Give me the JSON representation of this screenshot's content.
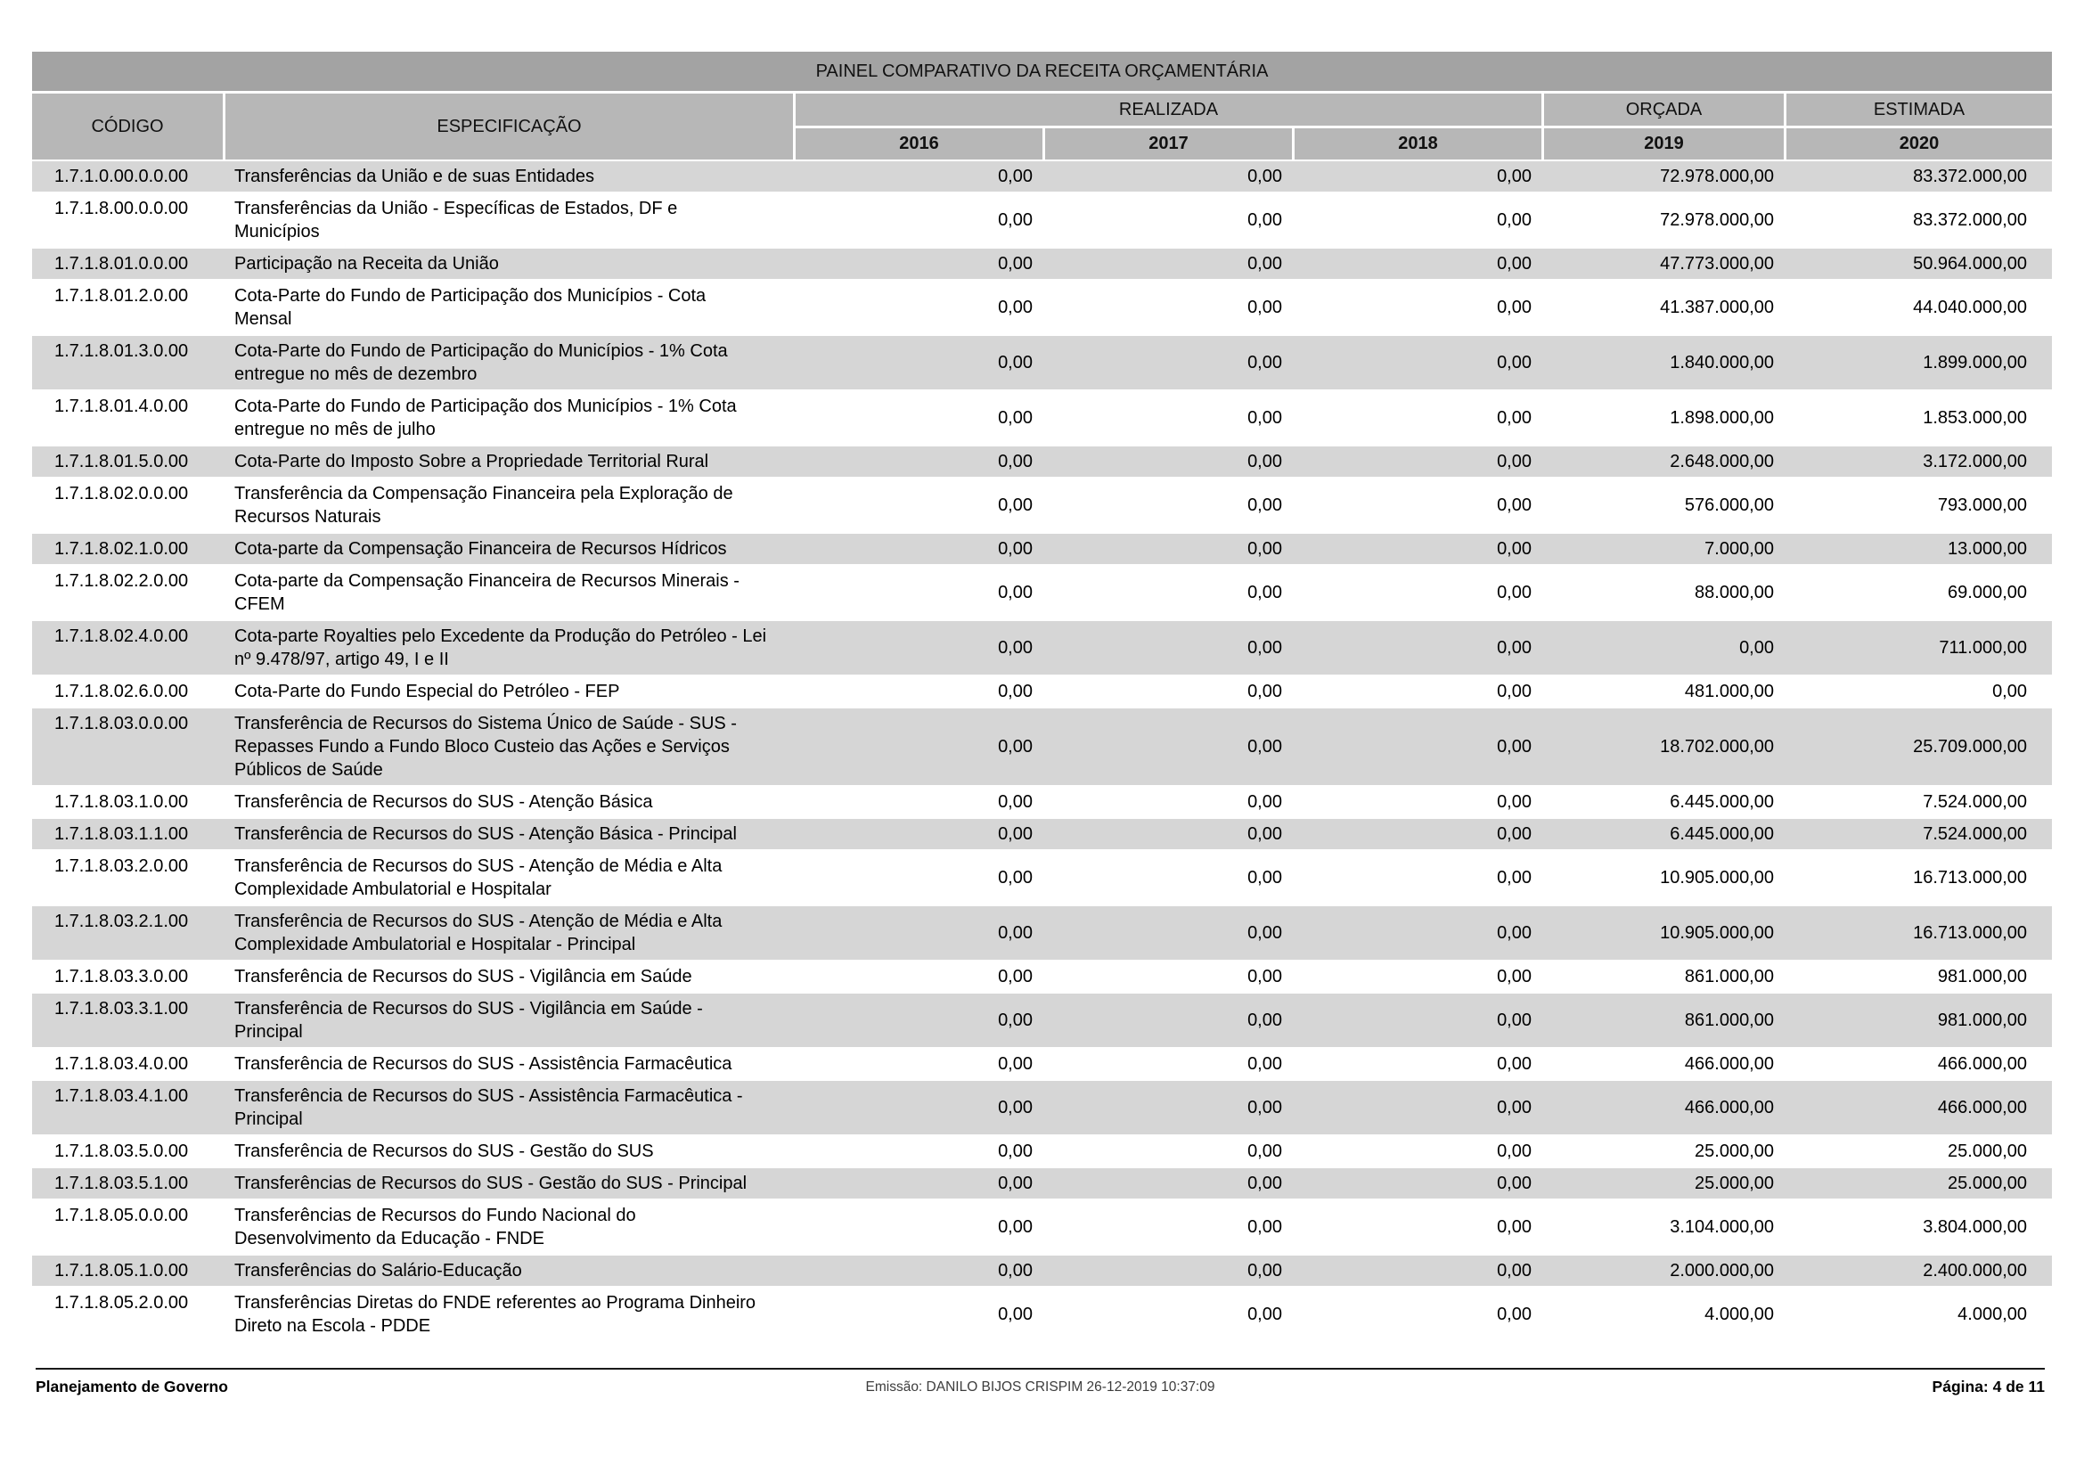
{
  "title": "PAINEL COMPARATIVO DA RECEITA ORÇAMENTÁRIA",
  "table": {
    "headers": {
      "codigo": "CÓDIGO",
      "especificacao": "ESPECIFICAÇÃO",
      "realizada": "REALIZADA",
      "orcada": "ORÇADA",
      "estimada": "ESTIMADA",
      "years": [
        "2016",
        "2017",
        "2018",
        "2019",
        "2020"
      ]
    },
    "rows": [
      {
        "code": "1.7.1.0.00.0.0.00",
        "spec": "Transferências da União e de suas Entidades",
        "values": [
          "0,00",
          "0,00",
          "0,00",
          "72.978.000,00",
          "83.372.000,00"
        ]
      },
      {
        "code": "1.7.1.8.00.0.0.00",
        "spec": "Transferências da União - Específicas de Estados, DF e Municípios",
        "values": [
          "0,00",
          "0,00",
          "0,00",
          "72.978.000,00",
          "83.372.000,00"
        ]
      },
      {
        "code": "1.7.1.8.01.0.0.00",
        "spec": "Participação na Receita da União",
        "values": [
          "0,00",
          "0,00",
          "0,00",
          "47.773.000,00",
          "50.964.000,00"
        ]
      },
      {
        "code": "1.7.1.8.01.2.0.00",
        "spec": "Cota-Parte do Fundo de Participação dos Municípios - Cota Mensal",
        "values": [
          "0,00",
          "0,00",
          "0,00",
          "41.387.000,00",
          "44.040.000,00"
        ]
      },
      {
        "code": "1.7.1.8.01.3.0.00",
        "spec": "Cota-Parte do Fundo de Participação do Municípios - 1% Cota entregue no mês de dezembro",
        "values": [
          "0,00",
          "0,00",
          "0,00",
          "1.840.000,00",
          "1.899.000,00"
        ]
      },
      {
        "code": "1.7.1.8.01.4.0.00",
        "spec": "Cota-Parte do Fundo de Participação dos Municípios - 1% Cota entregue no mês de julho",
        "values": [
          "0,00",
          "0,00",
          "0,00",
          "1.898.000,00",
          "1.853.000,00"
        ]
      },
      {
        "code": "1.7.1.8.01.5.0.00",
        "spec": "Cota-Parte do Imposto Sobre a Propriedade Territorial Rural",
        "values": [
          "0,00",
          "0,00",
          "0,00",
          "2.648.000,00",
          "3.172.000,00"
        ]
      },
      {
        "code": "1.7.1.8.02.0.0.00",
        "spec": "Transferência da Compensação Financeira pela Exploração de Recursos Naturais",
        "values": [
          "0,00",
          "0,00",
          "0,00",
          "576.000,00",
          "793.000,00"
        ]
      },
      {
        "code": "1.7.1.8.02.1.0.00",
        "spec": "Cota-parte da Compensação Financeira de Recursos Hídricos",
        "values": [
          "0,00",
          "0,00",
          "0,00",
          "7.000,00",
          "13.000,00"
        ]
      },
      {
        "code": "1.7.1.8.02.2.0.00",
        "spec": "Cota-parte da Compensação Financeira de Recursos Minerais - CFEM",
        "values": [
          "0,00",
          "0,00",
          "0,00",
          "88.000,00",
          "69.000,00"
        ]
      },
      {
        "code": "1.7.1.8.02.4.0.00",
        "spec": "Cota-parte Royalties pelo Excedente da Produção do Petróleo - Lei nº 9.478/97, artigo 49, I e II",
        "values": [
          "0,00",
          "0,00",
          "0,00",
          "0,00",
          "711.000,00"
        ]
      },
      {
        "code": "1.7.1.8.02.6.0.00",
        "spec": "Cota-Parte do Fundo Especial do Petróleo - FEP",
        "values": [
          "0,00",
          "0,00",
          "0,00",
          "481.000,00",
          "0,00"
        ]
      },
      {
        "code": "1.7.1.8.03.0.0.00",
        "spec": "Transferência de Recursos do Sistema Único de Saúde - SUS - Repasses Fundo a Fundo Bloco Custeio das Ações e Serviços Públicos de Saúde",
        "values": [
          "0,00",
          "0,00",
          "0,00",
          "18.702.000,00",
          "25.709.000,00"
        ]
      },
      {
        "code": "1.7.1.8.03.1.0.00",
        "spec": "Transferência de Recursos do SUS - Atenção Básica",
        "values": [
          "0,00",
          "0,00",
          "0,00",
          "6.445.000,00",
          "7.524.000,00"
        ]
      },
      {
        "code": "1.7.1.8.03.1.1.00",
        "spec": "Transferência de Recursos do SUS - Atenção Básica - Principal",
        "values": [
          "0,00",
          "0,00",
          "0,00",
          "6.445.000,00",
          "7.524.000,00"
        ]
      },
      {
        "code": "1.7.1.8.03.2.0.00",
        "spec": "Transferência de Recursos do SUS - Atenção de Média e Alta Complexidade Ambulatorial e Hospitalar",
        "values": [
          "0,00",
          "0,00",
          "0,00",
          "10.905.000,00",
          "16.713.000,00"
        ]
      },
      {
        "code": "1.7.1.8.03.2.1.00",
        "spec": "Transferência de Recursos do SUS - Atenção de Média e Alta Complexidade Ambulatorial e Hospitalar  - Principal",
        "values": [
          "0,00",
          "0,00",
          "0,00",
          "10.905.000,00",
          "16.713.000,00"
        ]
      },
      {
        "code": "1.7.1.8.03.3.0.00",
        "spec": "Transferência de Recursos do SUS - Vigilância em Saúde",
        "values": [
          "0,00",
          "0,00",
          "0,00",
          "861.000,00",
          "981.000,00"
        ]
      },
      {
        "code": "1.7.1.8.03.3.1.00",
        "spec": "Transferência de Recursos do SUS - Vigilância em Saúde  - Principal",
        "values": [
          "0,00",
          "0,00",
          "0,00",
          "861.000,00",
          "981.000,00"
        ]
      },
      {
        "code": "1.7.1.8.03.4.0.00",
        "spec": "Transferência de Recursos do SUS - Assistência Farmacêutica",
        "values": [
          "0,00",
          "0,00",
          "0,00",
          "466.000,00",
          "466.000,00"
        ]
      },
      {
        "code": "1.7.1.8.03.4.1.00",
        "spec": "Transferência de Recursos do SUS - Assistência Farmacêutica - Principal",
        "values": [
          "0,00",
          "0,00",
          "0,00",
          "466.000,00",
          "466.000,00"
        ]
      },
      {
        "code": "1.7.1.8.03.5.0.00",
        "spec": "Transferência de Recursos do SUS - Gestão do SUS",
        "values": [
          "0,00",
          "0,00",
          "0,00",
          "25.000,00",
          "25.000,00"
        ]
      },
      {
        "code": "1.7.1.8.03.5.1.00",
        "spec": "Transferências de Recursos do SUS - Gestão do SUS - Principal",
        "values": [
          "0,00",
          "0,00",
          "0,00",
          "25.000,00",
          "25.000,00"
        ]
      },
      {
        "code": "1.7.1.8.05.0.0.00",
        "spec": "Transferências de Recursos do Fundo Nacional do Desenvolvimento da Educação - FNDE",
        "values": [
          "0,00",
          "0,00",
          "0,00",
          "3.104.000,00",
          "3.804.000,00"
        ]
      },
      {
        "code": "1.7.1.8.05.1.0.00",
        "spec": "Transferências do Salário-Educação",
        "values": [
          "0,00",
          "0,00",
          "0,00",
          "2.000.000,00",
          "2.400.000,00"
        ]
      },
      {
        "code": "1.7.1.8.05.2.0.00",
        "spec": "Transferências Diretas do FNDE referentes ao Programa Dinheiro Direto na Escola - PDDE",
        "values": [
          "0,00",
          "0,00",
          "0,00",
          "4.000,00",
          "4.000,00"
        ]
      }
    ]
  },
  "footer": {
    "left": "Planejamento de Governo",
    "center": "Emissão: DANILO BIJOS CRISPIM 26-12-2019 10:37:09",
    "right": "Página: 4 de 11"
  }
}
